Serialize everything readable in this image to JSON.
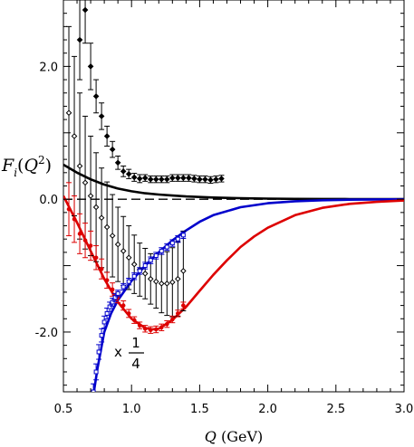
{
  "chart_data": {
    "type": "line",
    "title": "",
    "xlabel": "Q (GeV)",
    "ylabel": "F_i(Q^2)",
    "xlim": [
      0.5,
      3.0
    ],
    "ylim": [
      -2.9,
      3.0
    ],
    "xticks": [
      "0.5",
      "1.0",
      "1.5",
      "2.0",
      "2.5",
      "3.0"
    ],
    "yticks": [
      "2.0",
      "0.0",
      "-2.0"
    ],
    "annotation": {
      "prefix": "x",
      "numerator": "1",
      "denominator": "4"
    },
    "grid": false,
    "legend": "none",
    "series": [
      {
        "color": "#000000",
        "style": "solid",
        "x": [
          0.5,
          0.6,
          0.7,
          0.8,
          0.9,
          1.0,
          1.1,
          1.2,
          1.3,
          1.4,
          1.5,
          1.6,
          1.7,
          1.8,
          1.9,
          2.0,
          2.2,
          2.4,
          2.6,
          2.8,
          3.0
        ],
        "y": [
          0.52,
          0.4,
          0.3,
          0.22,
          0.16,
          0.12,
          0.09,
          0.07,
          0.055,
          0.042,
          0.033,
          0.026,
          0.02,
          0.016,
          0.012,
          0.009,
          0.005,
          0.003,
          0.002,
          0.001,
          0.0005
        ]
      },
      {
        "color": "#000000",
        "style": "dashed",
        "x": [
          0.5,
          3.0
        ],
        "y": [
          0.0,
          0.0
        ]
      },
      {
        "color": "#0000cc",
        "style": "solid",
        "x": [
          0.72,
          0.75,
          0.8,
          0.85,
          0.9,
          1.0,
          1.1,
          1.2,
          1.3,
          1.4,
          1.5,
          1.6,
          1.8,
          2.0,
          2.2,
          2.4,
          2.6,
          2.8,
          3.0
        ],
        "y": [
          -2.95,
          -2.55,
          -2.0,
          -1.72,
          -1.52,
          -1.23,
          -1.0,
          -0.8,
          -0.62,
          -0.47,
          -0.34,
          -0.24,
          -0.12,
          -0.06,
          -0.03,
          -0.015,
          -0.007,
          -0.003,
          -0.001
        ]
      },
      {
        "color": "#dd0000",
        "style": "solid",
        "x": [
          0.5,
          0.6,
          0.7,
          0.8,
          0.9,
          1.0,
          1.1,
          1.15,
          1.2,
          1.3,
          1.4,
          1.5,
          1.6,
          1.7,
          1.8,
          1.9,
          2.0,
          2.2,
          2.4,
          2.6,
          2.8,
          3.0
        ],
        "y": [
          0.05,
          -0.35,
          -0.78,
          -1.2,
          -1.55,
          -1.8,
          -1.94,
          -1.96,
          -1.95,
          -1.82,
          -1.62,
          -1.38,
          -1.14,
          -0.92,
          -0.72,
          -0.56,
          -0.43,
          -0.24,
          -0.13,
          -0.07,
          -0.04,
          -0.02
        ]
      }
    ],
    "data_points": [
      {
        "marker": "filled-diamond",
        "color": "#000000",
        "x": [
          0.62,
          0.66,
          0.7,
          0.74,
          0.78,
          0.82,
          0.86,
          0.9,
          0.94,
          0.98,
          1.02,
          1.06,
          1.1,
          1.14,
          1.18,
          1.22,
          1.26,
          1.3,
          1.34,
          1.38,
          1.42,
          1.46,
          1.5,
          1.54,
          1.58,
          1.62,
          1.66
        ],
        "y": [
          2.4,
          2.85,
          2.0,
          1.55,
          1.25,
          0.95,
          0.75,
          0.55,
          0.42,
          0.38,
          0.33,
          0.31,
          0.32,
          0.3,
          0.3,
          0.3,
          0.3,
          0.32,
          0.32,
          0.32,
          0.32,
          0.31,
          0.3,
          0.3,
          0.29,
          0.3,
          0.31
        ],
        "err": [
          0.6,
          0.5,
          0.35,
          0.25,
          0.2,
          0.15,
          0.12,
          0.1,
          0.08,
          0.07,
          0.06,
          0.06,
          0.05,
          0.05,
          0.05,
          0.05,
          0.05,
          0.05,
          0.05,
          0.05,
          0.05,
          0.05,
          0.05,
          0.05,
          0.05,
          0.05,
          0.05
        ]
      },
      {
        "marker": "open-diamond",
        "color": "#000000",
        "x": [
          0.54,
          0.58,
          0.62,
          0.66,
          0.7,
          0.74,
          0.78,
          0.82,
          0.86,
          0.9,
          0.94,
          0.98,
          1.02,
          1.06,
          1.1,
          1.14,
          1.18,
          1.22,
          1.26,
          1.3,
          1.34,
          1.38
        ],
        "y": [
          1.3,
          0.95,
          0.5,
          0.25,
          0.05,
          -0.12,
          -0.28,
          -0.42,
          -0.55,
          -0.68,
          -0.78,
          -0.88,
          -0.98,
          -1.06,
          -1.12,
          -1.2,
          -1.24,
          -1.27,
          -1.27,
          -1.25,
          -1.2,
          -1.08
        ],
        "err": [
          1.3,
          1.2,
          1.1,
          1.0,
          0.9,
          0.82,
          0.75,
          0.68,
          0.62,
          0.56,
          0.52,
          0.48,
          0.44,
          0.4,
          0.38,
          0.38,
          0.4,
          0.44,
          0.48,
          0.52,
          0.56,
          0.6
        ]
      },
      {
        "marker": "filled-circle",
        "color": "#dd0000",
        "x": [
          0.54,
          0.58,
          0.62,
          0.66,
          0.7,
          0.74,
          0.78,
          0.82,
          0.86,
          0.9,
          0.94,
          0.98,
          1.02,
          1.06,
          1.1,
          1.14,
          1.18,
          1.22,
          1.26,
          1.3,
          1.34,
          1.38
        ],
        "y": [
          -0.15,
          -0.3,
          -0.52,
          -0.62,
          -0.7,
          -0.88,
          -1.05,
          -1.22,
          -1.36,
          -1.48,
          -1.6,
          -1.72,
          -1.82,
          -1.9,
          -1.95,
          -1.97,
          -1.96,
          -1.93,
          -1.88,
          -1.81,
          -1.72,
          -1.6
        ],
        "err": [
          0.4,
          0.35,
          0.3,
          0.26,
          0.22,
          0.18,
          0.15,
          0.12,
          0.1,
          0.08,
          0.07,
          0.06,
          0.05,
          0.05,
          0.05,
          0.05,
          0.05,
          0.05,
          0.05,
          0.05,
          0.05,
          0.05
        ]
      },
      {
        "marker": "open-square",
        "color": "#0000cc",
        "x": [
          0.72,
          0.74,
          0.76,
          0.78,
          0.8,
          0.82,
          0.84,
          0.86,
          0.88,
          0.9,
          0.94,
          0.98,
          1.02,
          1.06,
          1.1,
          1.14,
          1.18,
          1.22,
          1.26,
          1.3,
          1.34,
          1.38
        ],
        "y": [
          -2.9,
          -2.6,
          -2.3,
          -2.05,
          -1.85,
          -1.72,
          -1.62,
          -1.55,
          -1.48,
          -1.42,
          -1.32,
          -1.24,
          -1.16,
          -1.08,
          -1.0,
          -0.92,
          -0.85,
          -0.78,
          -0.72,
          -0.66,
          -0.6,
          -0.54
        ],
        "err": [
          0.12,
          0.12,
          0.11,
          0.1,
          0.09,
          0.08,
          0.07,
          0.06,
          0.06,
          0.05,
          0.05,
          0.05,
          0.05,
          0.05,
          0.05,
          0.05,
          0.05,
          0.05,
          0.05,
          0.05,
          0.05,
          0.05
        ]
      }
    ]
  }
}
